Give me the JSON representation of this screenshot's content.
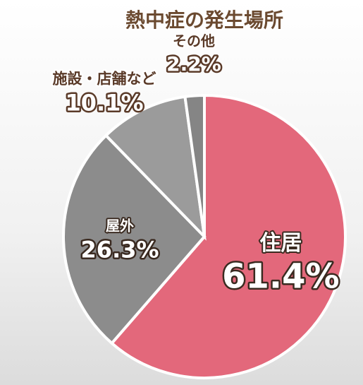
{
  "chart_data": {
    "type": "pie",
    "title": "熱中症の発生場所",
    "categories": [
      "住居",
      "屋外",
      "施設・店舗など",
      "その他"
    ],
    "values": [
      61.4,
      26.3,
      10.1,
      2.2
    ],
    "value_labels": [
      "61.4%",
      "26.3%",
      "10.1%",
      "2.2%"
    ],
    "colors": [
      "#e3687b",
      "#8c8c8c",
      "#9b9b9b",
      "#858585"
    ]
  }
}
